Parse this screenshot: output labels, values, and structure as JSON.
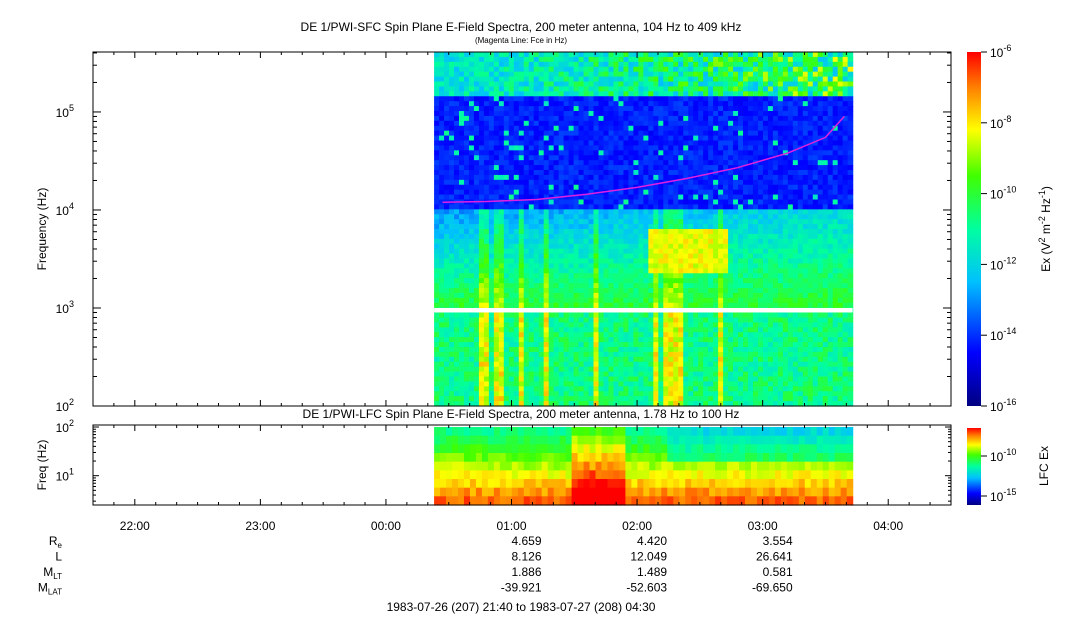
{
  "chart_data": [
    {
      "type": "heatmap",
      "title": "DE 1/PWI-SFC  Spin Plane E-Field Spectra, 200 meter antenna, 104 Hz to 409 kHz",
      "subtitle": "(Magenta Line: Fce in Hz)",
      "ylabel": "Frequency (Hz)",
      "yscale": "log",
      "ylim": [
        100,
        409000
      ],
      "y_ticks": [
        {
          "base": "10",
          "exp": "2"
        },
        {
          "base": "10",
          "exp": "3"
        },
        {
          "base": "10",
          "exp": "4"
        },
        {
          "base": "10",
          "exp": "5"
        }
      ],
      "colorbar": {
        "label": "Ex (V² m⁻² Hz⁻¹)",
        "label_parts": [
          "Ex (V",
          "2",
          " m",
          "-2",
          " Hz",
          "-1",
          ")"
        ],
        "scale": "log",
        "range": [
          1e-16,
          1e-06
        ],
        "ticks": [
          {
            "base": "10",
            "exp": "-6"
          },
          {
            "base": "10",
            "exp": "-8"
          },
          {
            "base": "10",
            "exp": "-10"
          },
          {
            "base": "10",
            "exp": "-12"
          },
          {
            "base": "10",
            "exp": "-14"
          },
          {
            "base": "10",
            "exp": "-16"
          }
        ]
      },
      "data_time_range": [
        "00:23",
        "03:43"
      ],
      "fce_line": {
        "color": "#e020e0",
        "time_hours": [
          0.45,
          0.8,
          1.2,
          1.6,
          2.0,
          2.4,
          2.8,
          3.2,
          3.5,
          3.65
        ],
        "freq_hz": [
          12000,
          12200,
          12800,
          14500,
          17000,
          21000,
          27000,
          38000,
          55000,
          90000
        ]
      }
    },
    {
      "type": "heatmap",
      "title": "DE 1/PWI-LFC  Spin Plane E-Field Spectra, 200 meter antenna, 1.78 Hz to 100 Hz",
      "ylabel": "Freq (Hz)",
      "yscale": "log",
      "ylim": [
        2.5,
        110
      ],
      "y_ticks": [
        {
          "base": "10",
          "exp": "1"
        },
        {
          "base": "10",
          "exp": "2"
        }
      ],
      "colorbar": {
        "label": "LFC Ex",
        "scale": "log",
        "ticks": [
          {
            "base": "10",
            "exp": "-10"
          },
          {
            "base": "10",
            "exp": "-15"
          }
        ]
      },
      "data_time_range": [
        "00:23",
        "03:43"
      ]
    }
  ],
  "time_axis": {
    "range_hours": [
      -2.333,
      4.5
    ],
    "ticks": [
      "22:00",
      "23:00",
      "00:00",
      "01:00",
      "02:00",
      "03:00",
      "04:00"
    ]
  },
  "ephemeris": {
    "rows": [
      {
        "label": "R",
        "sub": "e",
        "values": [
          "4.659",
          "4.420",
          "3.554"
        ]
      },
      {
        "label": "L",
        "sub": "",
        "values": [
          "8.126",
          "12.049",
          "26.641"
        ]
      },
      {
        "label": "M",
        "sub": "LT",
        "values": [
          "1.886",
          "1.489",
          "0.581"
        ]
      },
      {
        "label": "M",
        "sub": "LAT",
        "values": [
          "-39.921",
          "-52.603",
          "-69.650"
        ]
      }
    ]
  },
  "footer": "1983-07-26 (207) 21:40 to 1983-07-27 (208) 04:30"
}
